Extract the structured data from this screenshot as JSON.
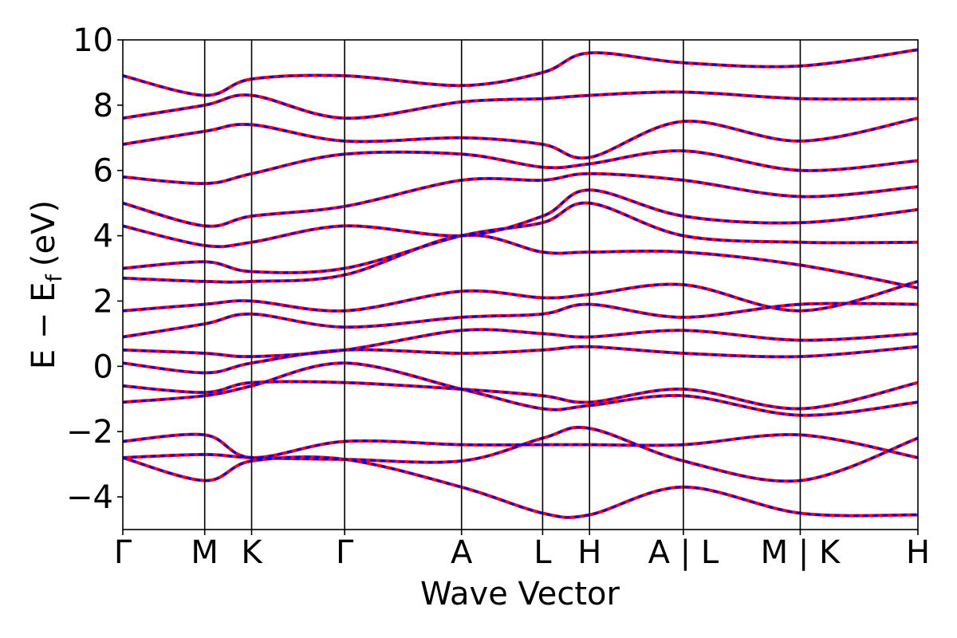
{
  "chart_data": {
    "type": "line",
    "title": "",
    "xlabel": "Wave Vector",
    "ylabel_main": "E − E",
    "ylabel_sub": "f",
    "ylabel_unit": "(eV)",
    "ylim": [
      -5,
      10
    ],
    "yticks": [
      -4,
      -2,
      0,
      2,
      4,
      6,
      8,
      10
    ],
    "ytick_labels": [
      "−4",
      "−2",
      "0",
      "2",
      "4",
      "6",
      "8",
      "10"
    ],
    "xticks": [
      0,
      0.103,
      0.162,
      0.279,
      0.426,
      0.528,
      0.587,
      0.705,
      0.852,
      1.0
    ],
    "xtick_labels": [
      "Γ",
      "M",
      "K",
      "Γ",
      "A",
      "L",
      "H",
      "A | L",
      "M | K",
      "H"
    ],
    "high_symmetry_lines": [
      0.103,
      0.162,
      0.279,
      0.426,
      0.528,
      0.587,
      0.705,
      0.852
    ],
    "grid": false,
    "legend": "none",
    "colors": {
      "solid_band": "#ff0000",
      "dashed_band": "#0000ff",
      "axis": "#000000"
    },
    "series": [
      {
        "line_style": "solid",
        "x": [
          0,
          0.103,
          0.162,
          0.279,
          0.426,
          0.528,
          0.587,
          0.705,
          0.852,
          1.0
        ],
        "y": [
          -2.8,
          -3.5,
          -2.9,
          -2.85,
          -3.7,
          -4.5,
          -4.55,
          -3.7,
          -4.5,
          -4.55
        ]
      },
      {
        "line_style": "solid",
        "x": [
          0,
          0.103,
          0.162,
          0.279,
          0.426,
          0.528,
          0.587,
          0.705,
          0.852,
          1.0
        ],
        "y": [
          -2.8,
          -2.7,
          -2.8,
          -2.85,
          -2.9,
          -2.2,
          -1.9,
          -2.9,
          -3.5,
          -2.2
        ]
      },
      {
        "line_style": "solid",
        "x": [
          0,
          0.103,
          0.162,
          0.279,
          0.426,
          0.528,
          0.587,
          0.705,
          0.852,
          1.0
        ],
        "y": [
          -2.3,
          -2.1,
          -2.8,
          -2.3,
          -2.4,
          -2.4,
          -2.4,
          -2.4,
          -2.1,
          -2.8
        ]
      },
      {
        "line_style": "solid",
        "x": [
          0,
          0.103,
          0.162,
          0.279,
          0.426,
          0.528,
          0.587,
          0.705,
          0.852,
          1.0
        ],
        "y": [
          -1.1,
          -0.9,
          -0.6,
          0.1,
          -0.7,
          -1.3,
          -1.2,
          -0.9,
          -1.5,
          -1.1
        ]
      },
      {
        "line_style": "solid",
        "x": [
          0,
          0.103,
          0.162,
          0.279,
          0.426,
          0.528,
          0.587,
          0.705,
          0.852,
          1.0
        ],
        "y": [
          -0.6,
          -0.8,
          -0.5,
          -0.5,
          -0.7,
          -0.9,
          -1.1,
          -0.7,
          -1.3,
          -0.5
        ]
      },
      {
        "line_style": "solid",
        "x": [
          0,
          0.103,
          0.162,
          0.279,
          0.426,
          0.528,
          0.587,
          0.705,
          0.852,
          1.0
        ],
        "y": [
          0.1,
          -0.2,
          0.1,
          0.5,
          0.4,
          0.5,
          0.6,
          0.4,
          0.3,
          0.6
        ]
      },
      {
        "line_style": "solid",
        "x": [
          0,
          0.103,
          0.162,
          0.279,
          0.426,
          0.528,
          0.587,
          0.705,
          0.852,
          1.0
        ],
        "y": [
          0.5,
          0.4,
          0.3,
          0.5,
          1.1,
          1.0,
          0.9,
          1.1,
          0.8,
          1.0
        ]
      },
      {
        "line_style": "solid",
        "x": [
          0,
          0.103,
          0.162,
          0.279,
          0.426,
          0.528,
          0.587,
          0.705,
          0.852,
          1.0
        ],
        "y": [
          0.9,
          1.3,
          1.6,
          1.2,
          1.5,
          1.6,
          1.9,
          1.5,
          1.9,
          1.9
        ]
      },
      {
        "line_style": "solid",
        "x": [
          0,
          0.103,
          0.162,
          0.279,
          0.426,
          0.528,
          0.587,
          0.705,
          0.852,
          1.0
        ],
        "y": [
          1.7,
          1.9,
          2.0,
          1.7,
          2.3,
          2.1,
          2.2,
          2.5,
          1.7,
          2.6
        ]
      },
      {
        "line_style": "solid",
        "x": [
          0,
          0.103,
          0.162,
          0.279,
          0.426,
          0.528,
          0.587,
          0.705,
          0.852,
          1.0
        ],
        "y": [
          2.7,
          2.6,
          2.6,
          2.8,
          4.0,
          3.5,
          3.5,
          3.5,
          3.1,
          2.4
        ]
      },
      {
        "line_style": "solid",
        "x": [
          0,
          0.103,
          0.162,
          0.279,
          0.426,
          0.528,
          0.587,
          0.705,
          0.852,
          1.0
        ],
        "y": [
          3.0,
          3.2,
          2.9,
          3.0,
          4.0,
          4.4,
          5.0,
          4.0,
          3.8,
          3.8
        ]
      },
      {
        "line_style": "solid",
        "x": [
          0,
          0.103,
          0.162,
          0.279,
          0.426,
          0.528,
          0.587,
          0.705,
          0.852,
          1.0
        ],
        "y": [
          4.3,
          3.7,
          3.8,
          4.3,
          4.0,
          4.6,
          5.4,
          4.6,
          4.4,
          4.8
        ]
      },
      {
        "line_style": "solid",
        "x": [
          0,
          0.103,
          0.162,
          0.279,
          0.426,
          0.528,
          0.587,
          0.705,
          0.852,
          1.0
        ],
        "y": [
          5.0,
          4.3,
          4.6,
          4.9,
          5.7,
          5.7,
          5.9,
          5.7,
          5.2,
          5.5
        ]
      },
      {
        "line_style": "solid",
        "x": [
          0,
          0.103,
          0.162,
          0.279,
          0.426,
          0.528,
          0.587,
          0.705,
          0.852,
          1.0
        ],
        "y": [
          5.8,
          5.6,
          5.9,
          6.5,
          6.5,
          6.1,
          6.2,
          6.6,
          6.0,
          6.3
        ]
      },
      {
        "line_style": "solid",
        "x": [
          0,
          0.103,
          0.162,
          0.279,
          0.426,
          0.528,
          0.587,
          0.705,
          0.852,
          1.0
        ],
        "y": [
          6.8,
          7.2,
          7.4,
          6.9,
          7.0,
          6.8,
          6.4,
          7.5,
          6.9,
          7.6
        ]
      },
      {
        "line_style": "solid",
        "x": [
          0,
          0.103,
          0.162,
          0.279,
          0.426,
          0.528,
          0.587,
          0.705,
          0.852,
          1.0
        ],
        "y": [
          7.6,
          8.0,
          8.3,
          7.6,
          8.1,
          8.2,
          8.3,
          8.4,
          8.2,
          8.2
        ]
      },
      {
        "line_style": "solid",
        "x": [
          0,
          0.103,
          0.162,
          0.279,
          0.426,
          0.528,
          0.587,
          0.705,
          0.852,
          1.0
        ],
        "y": [
          8.9,
          8.3,
          8.8,
          8.9,
          8.6,
          9.0,
          9.6,
          9.3,
          9.2,
          9.7
        ]
      },
      {
        "line_style": "dashed",
        "x": [
          0,
          0.103,
          0.162,
          0.279,
          0.426,
          0.528,
          0.587,
          0.705,
          0.852,
          1.0
        ],
        "y": [
          -2.8,
          -3.5,
          -2.9,
          -2.85,
          -3.7,
          -4.5,
          -4.55,
          -3.7,
          -4.5,
          -4.55
        ]
      },
      {
        "line_style": "dashed",
        "x": [
          0,
          0.103,
          0.162,
          0.279,
          0.426,
          0.528,
          0.587,
          0.705,
          0.852,
          1.0
        ],
        "y": [
          -2.8,
          -2.7,
          -2.8,
          -2.85,
          -2.9,
          -2.2,
          -1.9,
          -2.9,
          -3.5,
          -2.2
        ]
      },
      {
        "line_style": "dashed",
        "x": [
          0,
          0.103,
          0.162,
          0.279,
          0.426,
          0.528,
          0.587,
          0.705,
          0.852,
          1.0
        ],
        "y": [
          -2.3,
          -2.1,
          -2.8,
          -2.3,
          -2.4,
          -2.4,
          -2.4,
          -2.4,
          -2.1,
          -2.8
        ]
      },
      {
        "line_style": "dashed",
        "x": [
          0,
          0.103,
          0.162,
          0.279,
          0.426,
          0.528,
          0.587,
          0.705,
          0.852,
          1.0
        ],
        "y": [
          -1.1,
          -0.9,
          -0.6,
          0.1,
          -0.7,
          -1.3,
          -1.2,
          -0.9,
          -1.5,
          -1.1
        ]
      },
      {
        "line_style": "dashed",
        "x": [
          0,
          0.103,
          0.162,
          0.279,
          0.426,
          0.528,
          0.587,
          0.705,
          0.852,
          1.0
        ],
        "y": [
          -0.6,
          -0.8,
          -0.5,
          -0.5,
          -0.7,
          -0.9,
          -1.1,
          -0.7,
          -1.3,
          -0.5
        ]
      },
      {
        "line_style": "dashed",
        "x": [
          0,
          0.103,
          0.162,
          0.279,
          0.426,
          0.528,
          0.587,
          0.705,
          0.852,
          1.0
        ],
        "y": [
          0.1,
          -0.2,
          0.1,
          0.5,
          0.4,
          0.5,
          0.6,
          0.4,
          0.3,
          0.6
        ]
      },
      {
        "line_style": "dashed",
        "x": [
          0,
          0.103,
          0.162,
          0.279,
          0.426,
          0.528,
          0.587,
          0.705,
          0.852,
          1.0
        ],
        "y": [
          0.5,
          0.4,
          0.3,
          0.5,
          1.1,
          1.0,
          0.9,
          1.1,
          0.8,
          1.0
        ]
      },
      {
        "line_style": "dashed",
        "x": [
          0,
          0.103,
          0.162,
          0.279,
          0.426,
          0.528,
          0.587,
          0.705,
          0.852,
          1.0
        ],
        "y": [
          0.9,
          1.3,
          1.6,
          1.2,
          1.5,
          1.6,
          1.9,
          1.5,
          1.9,
          1.9
        ]
      },
      {
        "line_style": "dashed",
        "x": [
          0,
          0.103,
          0.162,
          0.279,
          0.426,
          0.528,
          0.587,
          0.705,
          0.852,
          1.0
        ],
        "y": [
          1.7,
          1.9,
          2.0,
          1.7,
          2.3,
          2.1,
          2.2,
          2.5,
          1.7,
          2.6
        ]
      },
      {
        "line_style": "dashed",
        "x": [
          0,
          0.103,
          0.162,
          0.279,
          0.426,
          0.528,
          0.587,
          0.705,
          0.852,
          1.0
        ],
        "y": [
          2.7,
          2.6,
          2.6,
          2.8,
          4.0,
          3.5,
          3.5,
          3.5,
          3.1,
          2.4
        ]
      },
      {
        "line_style": "dashed",
        "x": [
          0,
          0.103,
          0.162,
          0.279,
          0.426,
          0.528,
          0.587,
          0.705,
          0.852,
          1.0
        ],
        "y": [
          3.0,
          3.2,
          2.9,
          3.0,
          4.0,
          4.4,
          5.0,
          4.0,
          3.8,
          3.8
        ]
      },
      {
        "line_style": "dashed",
        "x": [
          0,
          0.103,
          0.162,
          0.279,
          0.426,
          0.528,
          0.587,
          0.705,
          0.852,
          1.0
        ],
        "y": [
          4.3,
          3.7,
          3.8,
          4.3,
          4.0,
          4.6,
          5.4,
          4.6,
          4.4,
          4.8
        ]
      },
      {
        "line_style": "dashed",
        "x": [
          0,
          0.103,
          0.162,
          0.279,
          0.426,
          0.528,
          0.587,
          0.705,
          0.852,
          1.0
        ],
        "y": [
          5.0,
          4.3,
          4.6,
          4.9,
          5.7,
          5.7,
          5.9,
          5.7,
          5.2,
          5.5
        ]
      },
      {
        "line_style": "dashed",
        "x": [
          0,
          0.103,
          0.162,
          0.279,
          0.426,
          0.528,
          0.587,
          0.705,
          0.852,
          1.0
        ],
        "y": [
          5.8,
          5.6,
          5.9,
          6.5,
          6.5,
          6.1,
          6.2,
          6.6,
          6.0,
          6.3
        ]
      },
      {
        "line_style": "dashed",
        "x": [
          0,
          0.103,
          0.162,
          0.279,
          0.426,
          0.528,
          0.587,
          0.705,
          0.852,
          1.0
        ],
        "y": [
          6.8,
          7.2,
          7.4,
          6.9,
          7.0,
          6.8,
          6.4,
          7.5,
          6.9,
          7.6
        ]
      },
      {
        "line_style": "dashed",
        "x": [
          0,
          0.103,
          0.162,
          0.279,
          0.426,
          0.528,
          0.587,
          0.705,
          0.852,
          1.0
        ],
        "y": [
          7.6,
          8.0,
          8.3,
          7.6,
          8.1,
          8.2,
          8.3,
          8.4,
          8.2,
          8.2
        ]
      },
      {
        "line_style": "dashed",
        "x": [
          0,
          0.103,
          0.162,
          0.279,
          0.426,
          0.528,
          0.587,
          0.705,
          0.852,
          1.0
        ],
        "y": [
          8.9,
          8.3,
          8.8,
          8.9,
          8.6,
          9.0,
          9.6,
          9.3,
          9.2,
          9.7
        ]
      }
    ]
  }
}
